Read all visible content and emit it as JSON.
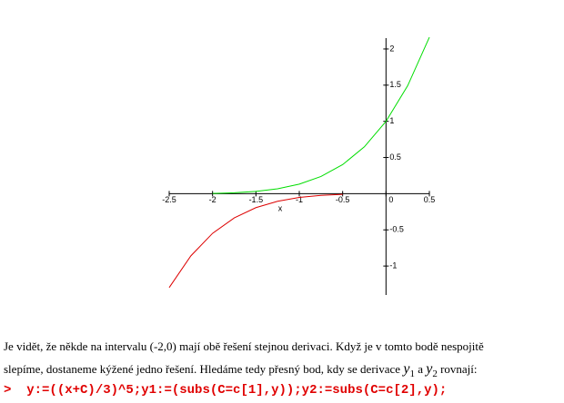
{
  "chart_data": {
    "type": "line",
    "xlabel": "x",
    "series": [
      {
        "color": "#00dd00",
        "x": [
          -2,
          -1.75,
          -1.5,
          -1.25,
          -1,
          -0.75,
          -0.5,
          -0.25,
          0,
          0.25,
          0.5
        ],
        "values": [
          0.0041,
          0.0126,
          0.0313,
          0.0675,
          0.1317,
          0.2373,
          0.4019,
          0.6472,
          1,
          1.4925,
          2.1614
        ]
      },
      {
        "color": "#dd0000",
        "x": [
          -2.5,
          -2.25,
          -2,
          -1.75,
          -1.5,
          -1.25,
          -1,
          -0.75,
          -0.5
        ],
        "values": [
          -1.297,
          -0.859,
          -0.548,
          -0.335,
          -0.193,
          -0.105,
          -0.052,
          -0.023,
          -0.0087
        ]
      }
    ],
    "xlim": [
      -2.5,
      0.5
    ],
    "ylim": [
      -1.4,
      2.15
    ],
    "xticks": [
      -2.5,
      -2,
      -1.5,
      -1,
      -0.5,
      0,
      0.5
    ],
    "yticks": [
      -1,
      -0.5,
      0.5,
      1,
      1.5,
      2
    ]
  },
  "paragraph": [
    "Je vidět, že někde na intervalu (-2,0) mají obě řešení stejnou derivaci. Když je v tomto bodě nespojitě",
    "slepíme, dostaneme kýžené jedno řešení. Hledáme tedy přesný bod, kdy se derivace",
    "y",
    "1",
    "a",
    "y",
    "2",
    "rovnají:"
  ],
  "prompt": ">",
  "command": "y:=((x+C)/3)^5;y1:=(subs(C=c[1],y));y2:=subs(C=c[2],y);"
}
